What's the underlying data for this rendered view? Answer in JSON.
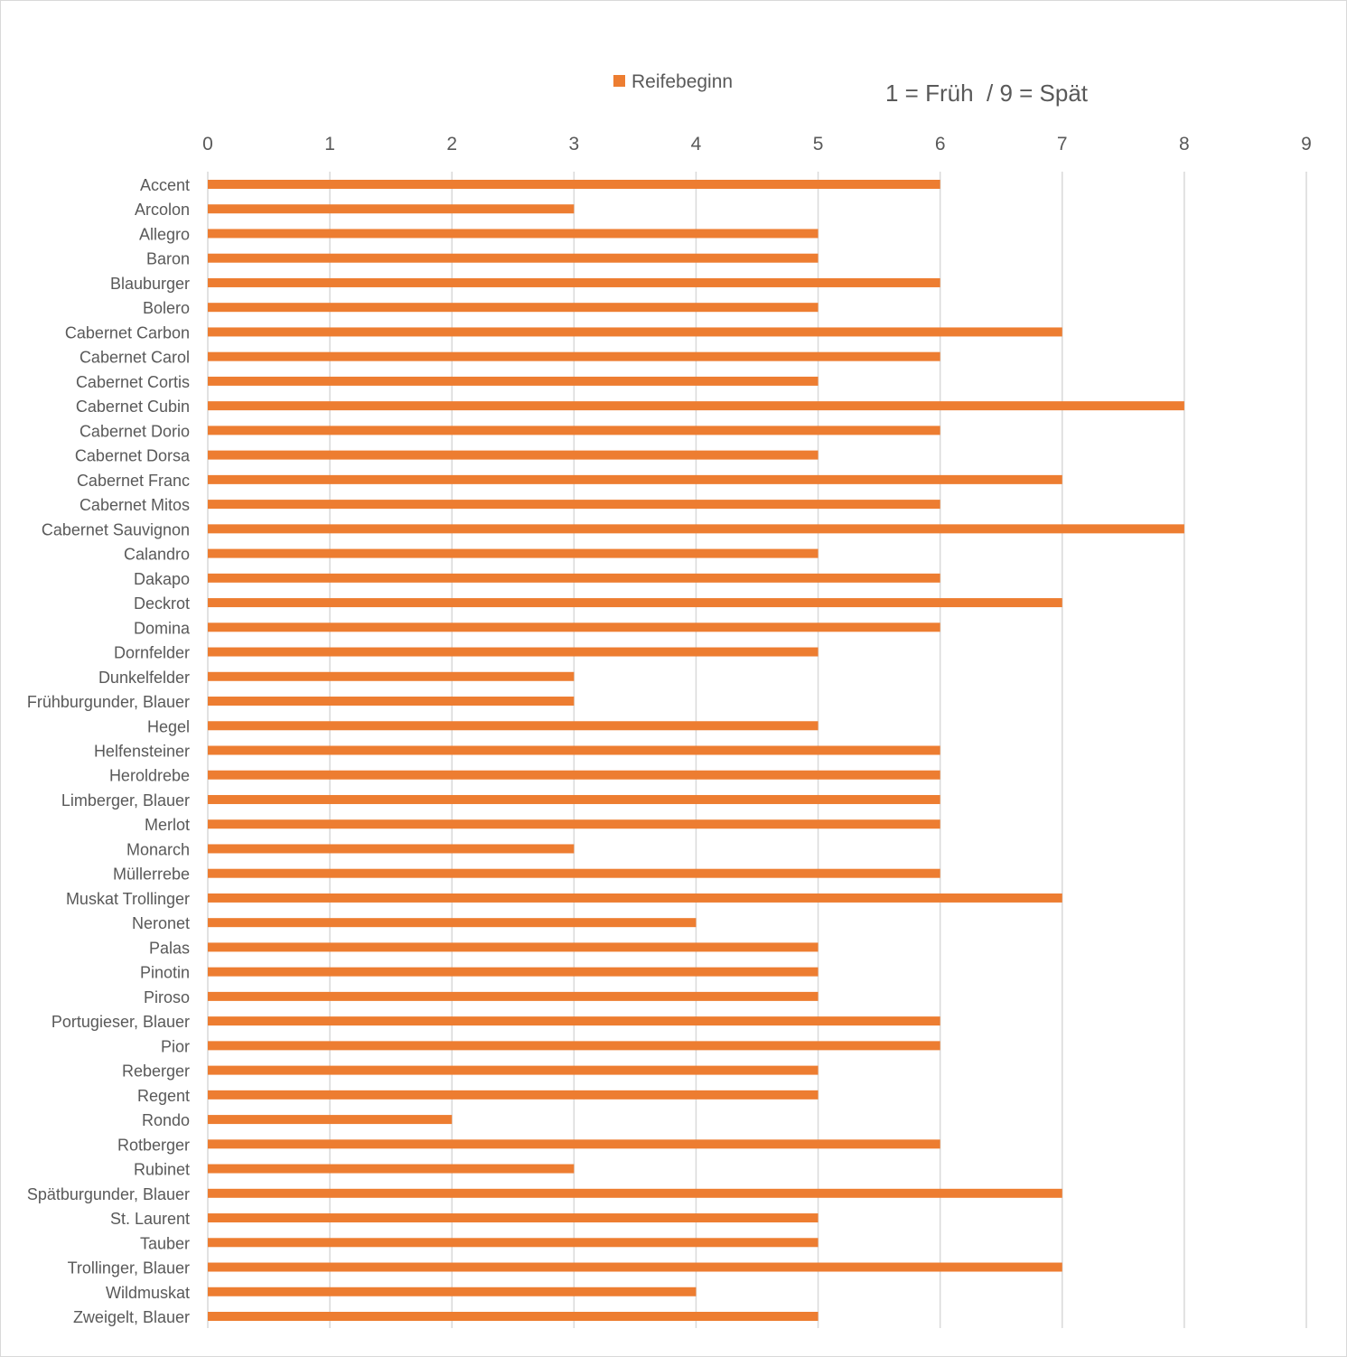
{
  "chart_data": {
    "type": "bar",
    "orientation": "horizontal",
    "title": "",
    "subtitle": "1 = Früh  / 9 = Spät",
    "xlabel": "",
    "ylabel": "",
    "xlim": [
      0,
      9
    ],
    "x_ticks": [
      "0",
      "1",
      "2",
      "3",
      "4",
      "5",
      "6",
      "7",
      "8",
      "9"
    ],
    "x_axis_position": "top",
    "grid": true,
    "legend": {
      "position": "top",
      "entries": [
        "Reifebeginn"
      ]
    },
    "bar_color": "#ED7D31",
    "categories": [
      "Accent",
      "Arcolon",
      "Allegro",
      "Baron",
      "Blauburger",
      "Bolero",
      "Cabernet Carbon",
      "Cabernet Carol",
      "Cabernet Cortis",
      "Cabernet Cubin",
      "Cabernet Dorio",
      "Cabernet Dorsa",
      "Cabernet Franc",
      "Cabernet Mitos",
      "Cabernet Sauvignon",
      "Calandro",
      "Dakapo",
      "Deckrot",
      "Domina",
      "Dornfelder",
      "Dunkelfelder",
      "Frühburgunder, Blauer",
      "Hegel",
      "Helfensteiner",
      "Heroldrebe",
      "Limberger, Blauer",
      "Merlot",
      "Monarch",
      "Müllerrebe",
      "Muskat Trollinger",
      "Neronet",
      "Palas",
      "Pinotin",
      "Piroso",
      "Portugieser, Blauer",
      "Pior",
      "Reberger",
      "Regent",
      "Rondo",
      "Rotberger",
      "Rubinet",
      "Spätburgunder, Blauer",
      "St. Laurent",
      "Tauber",
      "Trollinger, Blauer",
      "Wildmuskat",
      "Zweigelt, Blauer"
    ],
    "series": [
      {
        "name": "Reifebeginn",
        "values": [
          6,
          3,
          5,
          5,
          6,
          5,
          7,
          6,
          5,
          8,
          6,
          5,
          7,
          6,
          8,
          5,
          6,
          7,
          6,
          5,
          3,
          3,
          5,
          6,
          6,
          6,
          6,
          3,
          6,
          7,
          4,
          5,
          5,
          5,
          6,
          6,
          5,
          5,
          2,
          6,
          3,
          7,
          5,
          5,
          7,
          4,
          5
        ]
      }
    ]
  }
}
